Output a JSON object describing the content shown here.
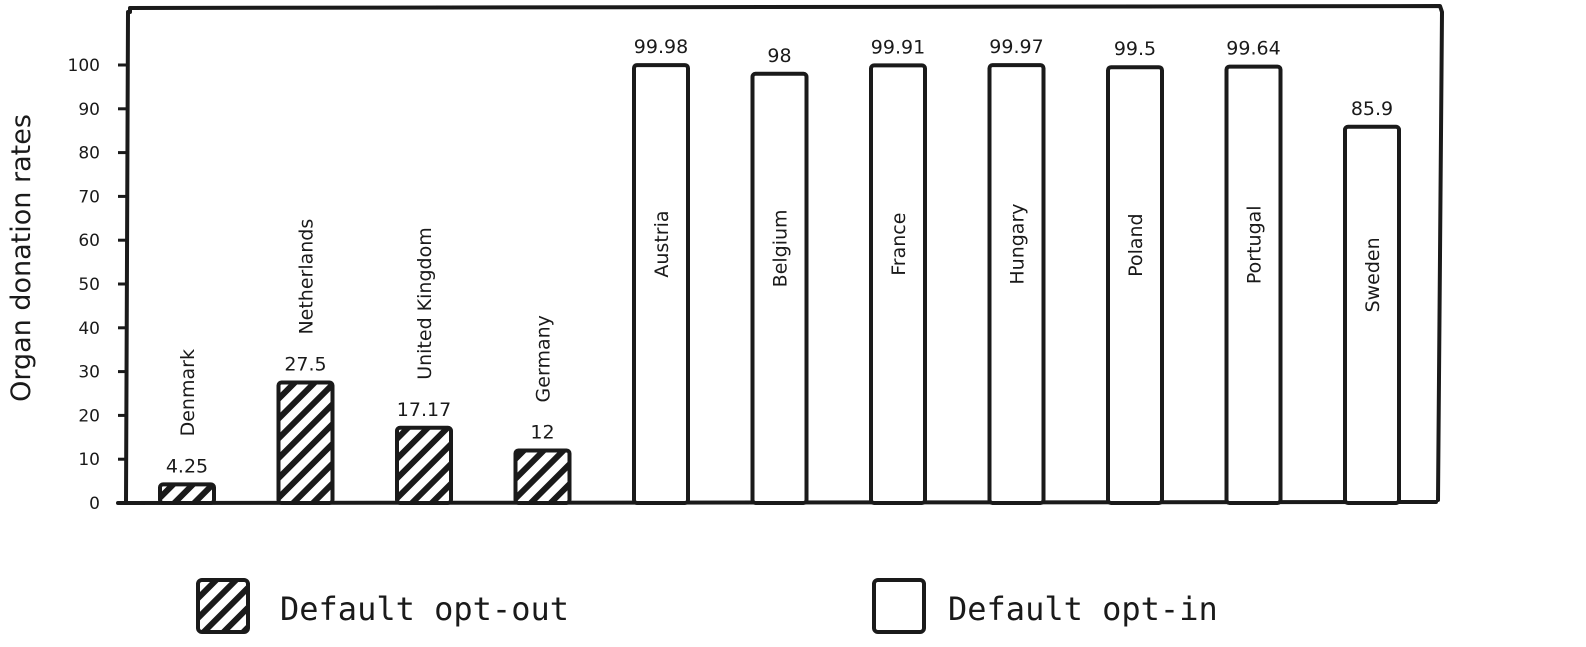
{
  "chart_data": {
    "type": "bar",
    "ylabel": "Organ donation rates",
    "ylim": [
      0,
      100
    ],
    "yticks": [
      0,
      10,
      20,
      30,
      40,
      50,
      60,
      70,
      80,
      90,
      100
    ],
    "categories": [
      "Denmark",
      "Netherlands",
      "United Kingdom",
      "Germany",
      "Austria",
      "Belgium",
      "France",
      "Hungary",
      "Poland",
      "Portugal",
      "Sweden"
    ],
    "values": [
      4.25,
      27.5,
      17.17,
      12,
      99.98,
      98,
      99.91,
      99.97,
      99.5,
      99.64,
      85.9
    ],
    "value_labels": [
      "4.25",
      "27.5",
      "17.17",
      "12",
      "99.98",
      "98",
      "99.91",
      "99.97",
      "99.5",
      "99.64",
      "85.9"
    ],
    "groups": [
      "opt-out",
      "opt-out",
      "opt-out",
      "opt-out",
      "opt-in",
      "opt-in",
      "opt-in",
      "opt-in",
      "opt-in",
      "opt-in",
      "opt-in"
    ],
    "legend": {
      "placement": "bottom",
      "items": [
        {
          "key": "opt-out",
          "label": "Default opt-out",
          "pattern": "hatched"
        },
        {
          "key": "opt-in",
          "label": "Default opt-in",
          "pattern": "empty"
        }
      ]
    },
    "grid": false,
    "colors": {
      "ink": "#1a1a1a",
      "fill": "#ffffff"
    }
  }
}
